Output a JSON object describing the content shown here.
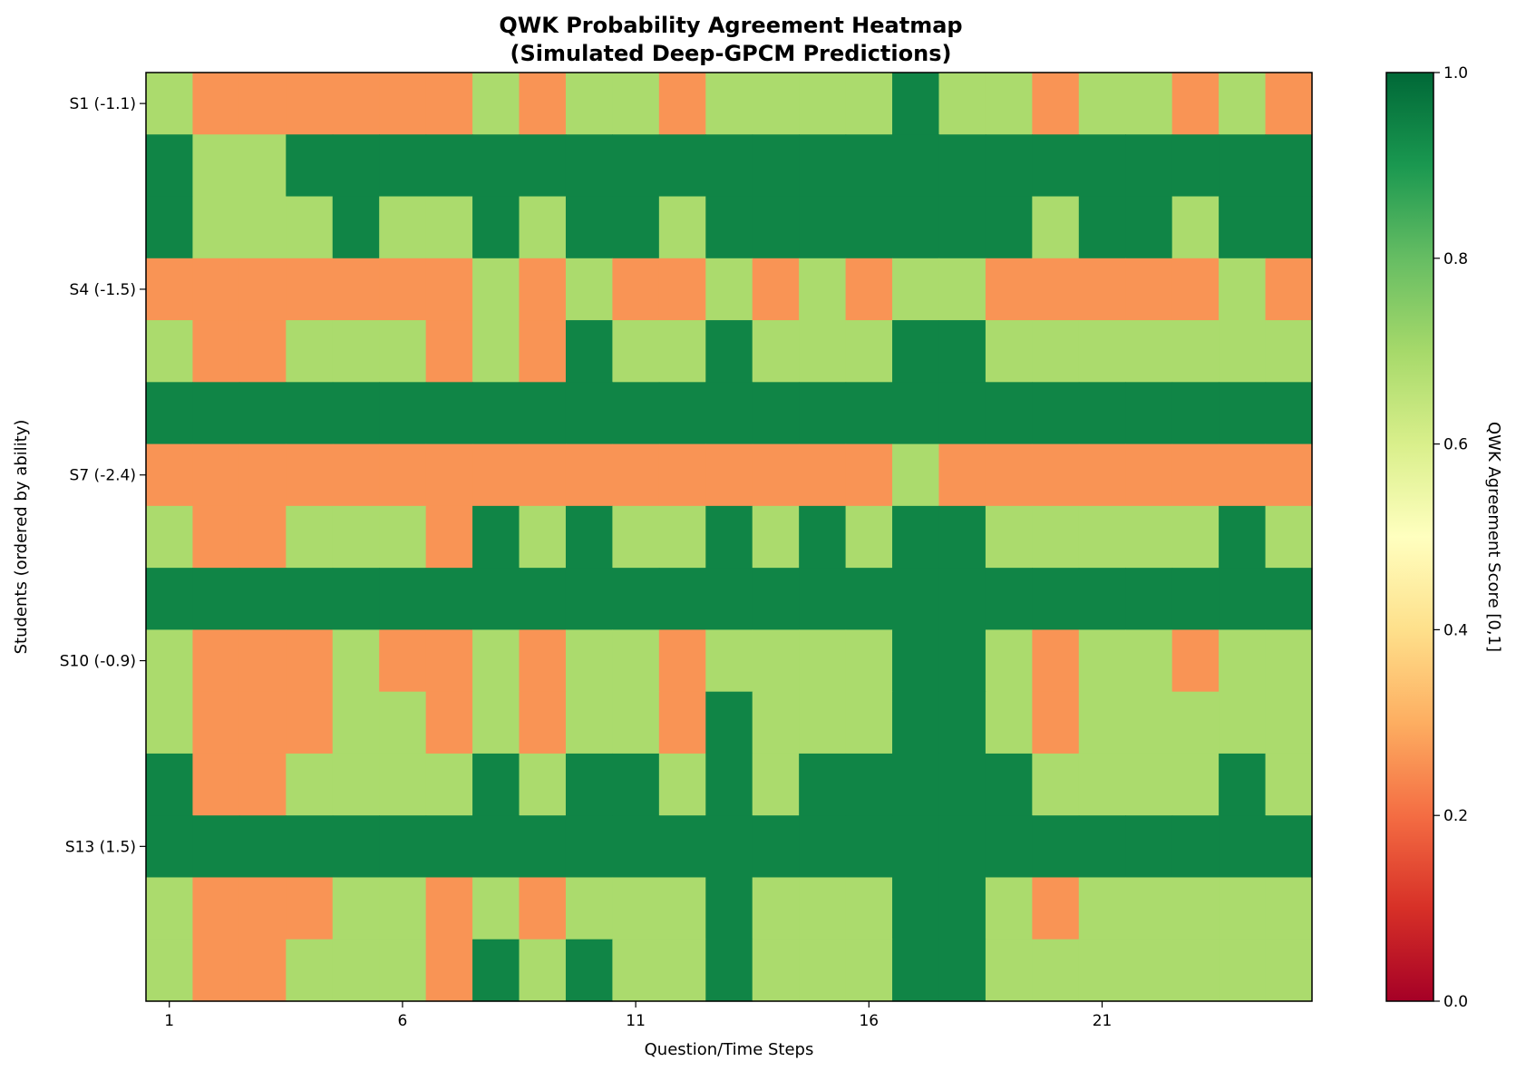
{
  "chart_data": {
    "type": "heatmap",
    "title": "QWK Probability Agreement Heatmap",
    "subtitle": "(Simulated Deep-GPCM Predictions)",
    "xlabel": "Question/Time Steps",
    "ylabel": "Students (ordered by ability)",
    "colorbar_label": "QWK Agreement Score [0,1]",
    "colormap": "RdYlGn",
    "vmin": 0,
    "vmax": 1,
    "colorbar_ticks": [
      "0.0",
      "0.2",
      "0.4",
      "0.6",
      "0.8",
      "1.0"
    ],
    "x_ticks": [
      {
        "step": 1,
        "label": "1"
      },
      {
        "step": 6,
        "label": "6"
      },
      {
        "step": 11,
        "label": "11"
      },
      {
        "step": 16,
        "label": "16"
      },
      {
        "step": 21,
        "label": "21"
      }
    ],
    "y_ticks": [
      {
        "row": 0,
        "label": "S1 (-1.1)"
      },
      {
        "row": 3,
        "label": "S4 (-1.5)"
      },
      {
        "row": 6,
        "label": "S7 (-2.4)"
      },
      {
        "row": 9,
        "label": "S10 (-0.9)"
      },
      {
        "row": 12,
        "label": "S13 (1.5)"
      }
    ],
    "n_steps": 25,
    "n_students": 15,
    "value_levels": {
      "H": 0.94,
      "M": 0.69,
      "L": 0.26
    },
    "rows": [
      "MLLLLLLMLMMLMMMMHMMLMMLML",
      "HMMHHHHHHHHHHHHHHHHHHHHHH",
      "HMMMHMMHMHHMHHHHHHHMHHMHH",
      "LLLLLLLMLMLLMLMLMMLLLLLML",
      "MLLMMMLMLHMMHMMMHHMMMMMMM",
      "HHHHHHHHHHHHHHHHHHHHHHHHH",
      "LLLLLLLLLLLLLLLLMLLLLLLLL",
      "MLLMMMLHMHMMHMHMHHMMMMMHM",
      "HHHHHHHHHHHHHHHHHHHHHHHHH",
      "MLLLMLLMLMMLMMMMHHMLMMLMM",
      "MLLLMMLMLMMLHMMMHHMLMMMMM",
      "HLLMMMMHMHHMHMHHHHHMMMMHM",
      "HHHHHHHHHHHHHHHHHHHHHHHHH",
      "MLLLMMLMLMMMHMMMHHMLMMMMM",
      "MLLMMMLHMHMMHMMMHHMMMMMMM"
    ]
  }
}
